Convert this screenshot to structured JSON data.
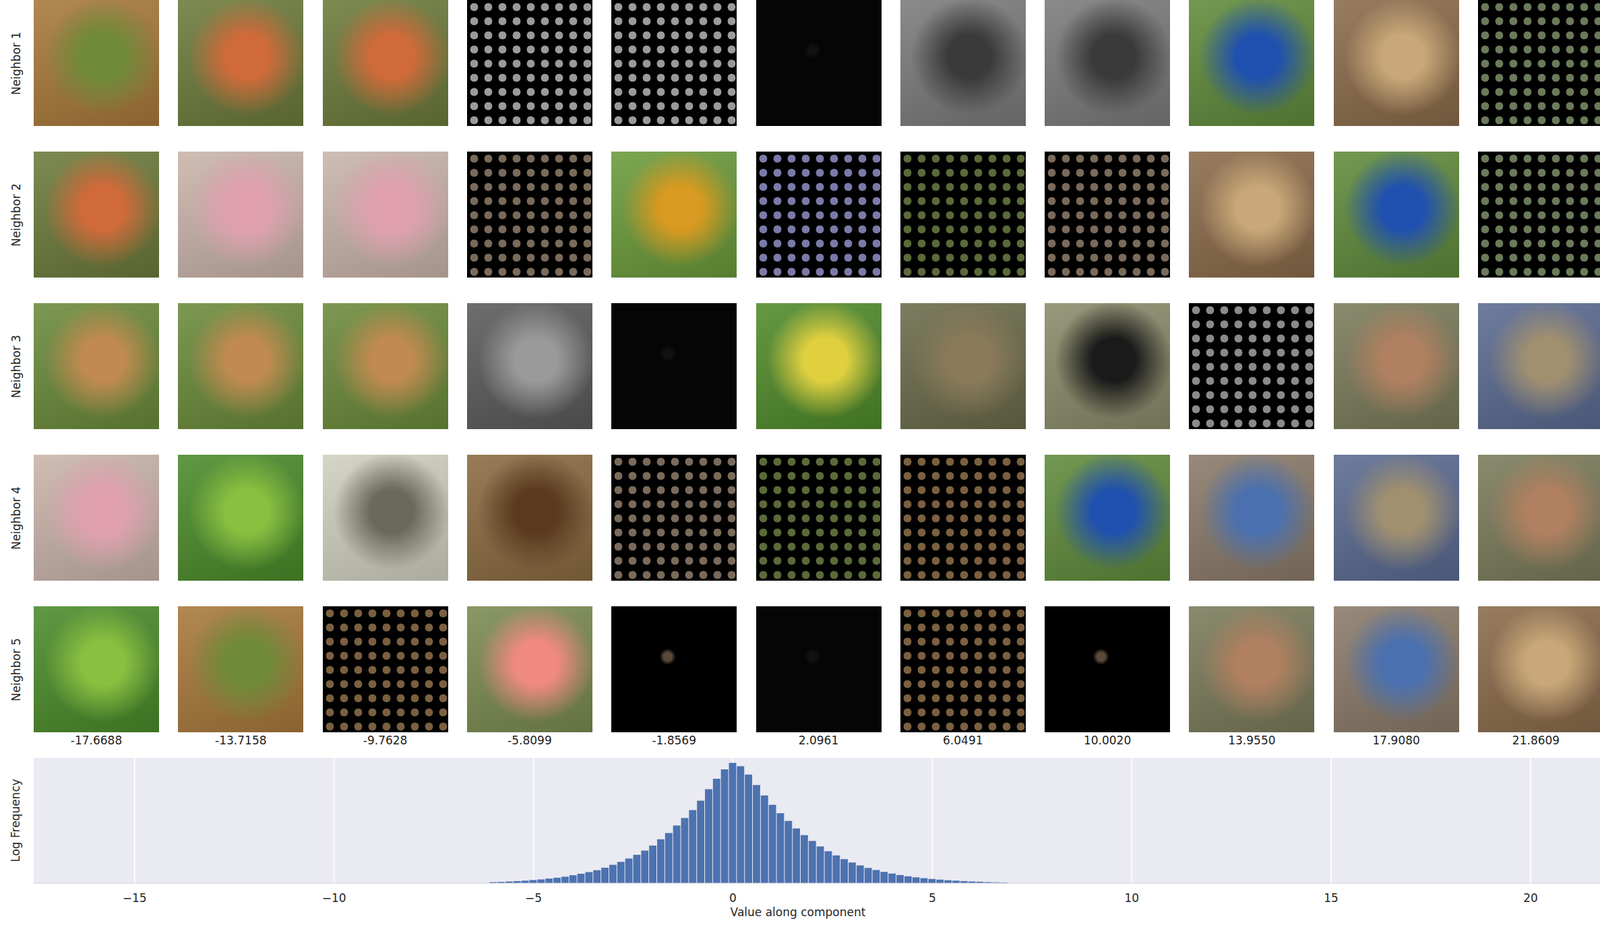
{
  "chart_data": {
    "type": "histogram",
    "x_label": "Value along component",
    "y_label": "Log Frequency",
    "bins": [
      -6.1,
      -5.9,
      -5.7,
      -5.5,
      -5.3,
      -5.1,
      -4.9,
      -4.7,
      -4.5,
      -4.3,
      -4.1,
      -3.9,
      -3.7,
      -3.5,
      -3.3,
      -3.1,
      -2.9,
      -2.7,
      -2.5,
      -2.3,
      -2.1,
      -1.9,
      -1.7,
      -1.5,
      -1.3,
      -1.1,
      -0.9,
      -0.7,
      -0.5,
      -0.3,
      -0.1,
      0.1,
      0.3,
      0.5,
      0.7,
      0.9,
      1.1,
      1.3,
      1.5,
      1.7,
      1.9,
      2.1,
      2.3,
      2.5,
      2.7,
      2.9,
      3.1,
      3.3,
      3.5,
      3.7,
      3.9,
      4.1,
      4.3,
      4.5,
      4.7,
      4.9,
      5.1,
      5.3,
      5.5,
      5.7,
      5.9,
      6.1,
      6.3,
      6.5,
      6.7,
      6.9
    ],
    "values": [
      0.05,
      0.06,
      0.08,
      0.1,
      0.12,
      0.15,
      0.18,
      0.22,
      0.26,
      0.31,
      0.38,
      0.45,
      0.53,
      0.62,
      0.74,
      0.88,
      1.02,
      1.18,
      1.36,
      1.56,
      1.8,
      2.1,
      2.4,
      2.76,
      3.12,
      3.5,
      3.95,
      4.5,
      5.0,
      5.45,
      5.76,
      5.6,
      5.2,
      4.7,
      4.2,
      3.75,
      3.35,
      2.98,
      2.62,
      2.3,
      2.02,
      1.76,
      1.53,
      1.33,
      1.15,
      0.99,
      0.85,
      0.73,
      0.63,
      0.54,
      0.46,
      0.39,
      0.33,
      0.28,
      0.24,
      0.2,
      0.17,
      0.14,
      0.12,
      0.1,
      0.08,
      0.07,
      0.05,
      0.04,
      0.03
    ],
    "color": "#4c72b0",
    "xlim": [
      -17.53,
      21.74
    ],
    "xticks": [
      {
        "value": -15,
        "label": "−15"
      },
      {
        "value": -10,
        "label": "−10"
      },
      {
        "value": -5,
        "label": "−5"
      },
      0,
      5,
      10,
      15,
      20
    ],
    "ylim": [
      0,
      6
    ],
    "grid": true,
    "tick_labels": "x"
  },
  "neighbor_grid": {
    "row_labels": [
      "Neighbor 1",
      "Neighbor 2",
      "Neighbor 3",
      "Neighbor 4",
      "Neighbor 5"
    ],
    "column_labels": [
      "-17.6688",
      "-13.7158",
      "-9.7628",
      "-5.8099",
      "-1.8569",
      "2.0961",
      "6.0491",
      "10.0020",
      "13.9550",
      "17.9080",
      "21.8609"
    ]
  }
}
